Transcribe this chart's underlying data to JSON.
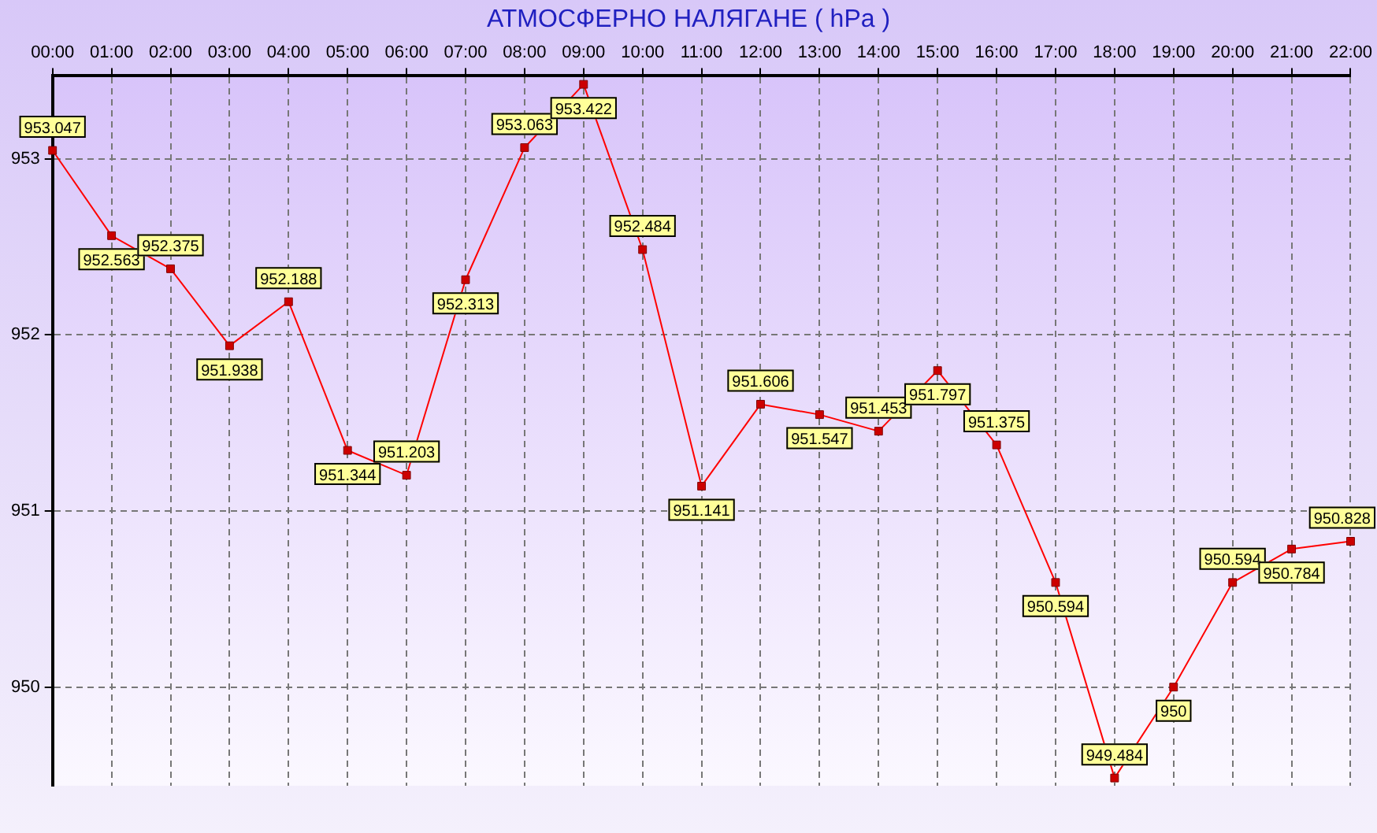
{
  "chart_data": {
    "type": "line",
    "title": "АТМОСФЕРНО НАЛЯГАНЕ  ( hPa )",
    "categories": [
      "00:00",
      "01:00",
      "02:00",
      "03:00",
      "04:00",
      "05:00",
      "06:00",
      "07:00",
      "08:00",
      "09:00",
      "10:00",
      "11:00",
      "12:00",
      "13:00",
      "14:00",
      "15:00",
      "16:00",
      "17:00",
      "18:00",
      "19:00",
      "20:00",
      "21:00",
      "22:00"
    ],
    "series": [
      {
        "color": "#ff0000",
        "values": [
          953.047,
          952.563,
          952.375,
          951.938,
          952.188,
          951.344,
          951.203,
          952.313,
          953.063,
          953.422,
          952.484,
          951.141,
          951.606,
          951.547,
          951.453,
          951.797,
          951.375,
          950.594,
          949.484,
          950,
          950.594,
          950.784,
          950.828
        ]
      }
    ],
    "ylim": [
      949.44,
      953.47
    ],
    "yticks": [
      950,
      951,
      952,
      953
    ],
    "grid": true,
    "legend": false,
    "marker": "square",
    "line_style": "solid",
    "data_labels": true
  }
}
